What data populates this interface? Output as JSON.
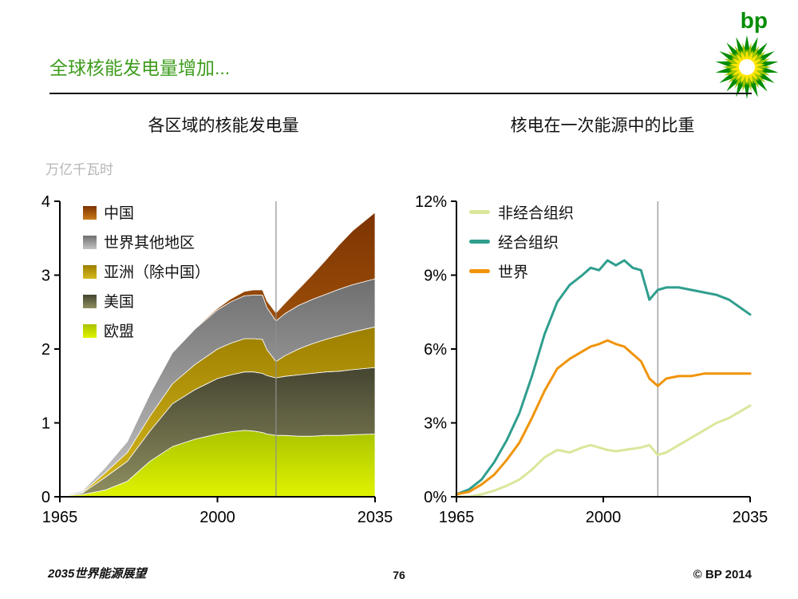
{
  "page": {
    "title": "全球核能发电量增加...",
    "footer_left": "2035世界能源展望",
    "page_number": "76",
    "copyright": "© BP 2014",
    "logo_text": "bp"
  },
  "colors": {
    "title_green": "#3f9c1e",
    "axis_black": "#000000",
    "marker_gray": "#8f8f8f",
    "unit_label_gray": "#b5b5b5",
    "bp_green": "#008c00",
    "bp_midgreen": "#9ec400",
    "bp_yellow": "#ffe600"
  },
  "chart_data": [
    {
      "type": "area",
      "title": "各区域的核能发电量",
      "unit_label": "万亿千瓦时",
      "xlim": [
        1965,
        2035
      ],
      "ylim": [
        0,
        4
      ],
      "x": [
        1965,
        1970,
        1975,
        1980,
        1985,
        1990,
        1995,
        2000,
        2003,
        2006,
        2008,
        2010,
        2011,
        2013,
        2015,
        2018,
        2021,
        2024,
        2027,
        2030,
        2035
      ],
      "series": [
        {
          "name": "欧盟",
          "color_top": "#aac400",
          "color_bottom": "#e0f300",
          "values": [
            0.01,
            0.03,
            0.09,
            0.21,
            0.48,
            0.68,
            0.78,
            0.85,
            0.88,
            0.9,
            0.89,
            0.87,
            0.85,
            0.83,
            0.83,
            0.82,
            0.82,
            0.83,
            0.83,
            0.84,
            0.85
          ]
        },
        {
          "name": "美国",
          "color_top": "#454531",
          "color_bottom": "#8f8f60",
          "values": [
            0.0,
            0.02,
            0.17,
            0.27,
            0.41,
            0.58,
            0.67,
            0.75,
            0.77,
            0.79,
            0.8,
            0.8,
            0.79,
            0.78,
            0.8,
            0.83,
            0.85,
            0.86,
            0.87,
            0.88,
            0.9
          ]
        },
        {
          "name": "亚洲（除中国）",
          "color_top": "#9d7f00",
          "color_bottom": "#d6b91e",
          "values": [
            0.0,
            0.01,
            0.06,
            0.12,
            0.2,
            0.27,
            0.34,
            0.4,
            0.43,
            0.45,
            0.45,
            0.46,
            0.35,
            0.22,
            0.28,
            0.35,
            0.4,
            0.44,
            0.48,
            0.51,
            0.55
          ]
        },
        {
          "name": "世界其他地区",
          "color_top": "#6f6f6f",
          "color_bottom": "#c4c4c4",
          "values": [
            0.005,
            0.02,
            0.07,
            0.15,
            0.3,
            0.42,
            0.48,
            0.53,
            0.56,
            0.58,
            0.59,
            0.6,
            0.57,
            0.55,
            0.57,
            0.59,
            0.6,
            0.61,
            0.63,
            0.64,
            0.65
          ]
        },
        {
          "name": "中国",
          "color_top": "#7d3300",
          "color_bottom": "#c97a1a",
          "values": [
            0.0,
            0.0,
            0.0,
            0.0,
            0.0,
            0.0,
            0.01,
            0.02,
            0.04,
            0.06,
            0.07,
            0.07,
            0.09,
            0.11,
            0.14,
            0.22,
            0.33,
            0.46,
            0.6,
            0.73,
            0.9
          ]
        }
      ],
      "legend": [
        "中国",
        "世界其他地区",
        "亚洲（除中国）",
        "美国",
        "欧盟"
      ],
      "yticks": [
        {
          "value": 0,
          "label": "0"
        },
        {
          "value": 1,
          "label": "1"
        },
        {
          "value": 2,
          "label": "2"
        },
        {
          "value": 3,
          "label": "3"
        },
        {
          "value": 4,
          "label": "4"
        }
      ],
      "xticks": [
        1965,
        2000,
        2035
      ],
      "marker_year": 2013
    },
    {
      "type": "line",
      "title": "核电在一次能源中的比重",
      "xlim": [
        1965,
        2035
      ],
      "ylim": [
        0,
        12
      ],
      "x": [
        1965,
        1968,
        1971,
        1974,
        1977,
        1980,
        1983,
        1986,
        1989,
        1992,
        1995,
        1997,
        1999,
        2001,
        2003,
        2005,
        2007,
        2009,
        2011,
        2013,
        2015,
        2018,
        2021,
        2024,
        2027,
        2030,
        2035
      ],
      "series": [
        {
          "name": "非经合组织",
          "color": "#d9e79b",
          "values": [
            0.0,
            0.0,
            0.1,
            0.25,
            0.45,
            0.7,
            1.1,
            1.6,
            1.9,
            1.8,
            2.0,
            2.1,
            2.0,
            1.9,
            1.85,
            1.9,
            1.95,
            2.0,
            2.1,
            1.7,
            1.8,
            2.1,
            2.4,
            2.7,
            3.0,
            3.2,
            3.7
          ]
        },
        {
          "name": "经合组织",
          "color": "#2f9e8e",
          "values": [
            0.1,
            0.3,
            0.7,
            1.4,
            2.3,
            3.4,
            4.9,
            6.6,
            7.9,
            8.6,
            9.0,
            9.3,
            9.2,
            9.6,
            9.4,
            9.6,
            9.3,
            9.2,
            8.0,
            8.4,
            8.5,
            8.5,
            8.4,
            8.3,
            8.2,
            8.0,
            7.4
          ]
        },
        {
          "name": "世界",
          "color": "#f0940a",
          "values": [
            0.1,
            0.2,
            0.5,
            0.9,
            1.5,
            2.2,
            3.2,
            4.3,
            5.2,
            5.6,
            5.9,
            6.1,
            6.2,
            6.35,
            6.2,
            6.1,
            5.8,
            5.5,
            4.8,
            4.5,
            4.8,
            4.9,
            4.9,
            5.0,
            5.0,
            5.0,
            5.0
          ]
        }
      ],
      "legend": [
        "非经合组织",
        "经合组织",
        "世界"
      ],
      "yticks": [
        {
          "value": 0,
          "label": "0%"
        },
        {
          "value": 3,
          "label": "3%"
        },
        {
          "value": 6,
          "label": "6%"
        },
        {
          "value": 9,
          "label": "9%"
        },
        {
          "value": 12,
          "label": "12%"
        }
      ],
      "xticks": [
        1965,
        2000,
        2035
      ],
      "marker_year": 2013
    }
  ]
}
